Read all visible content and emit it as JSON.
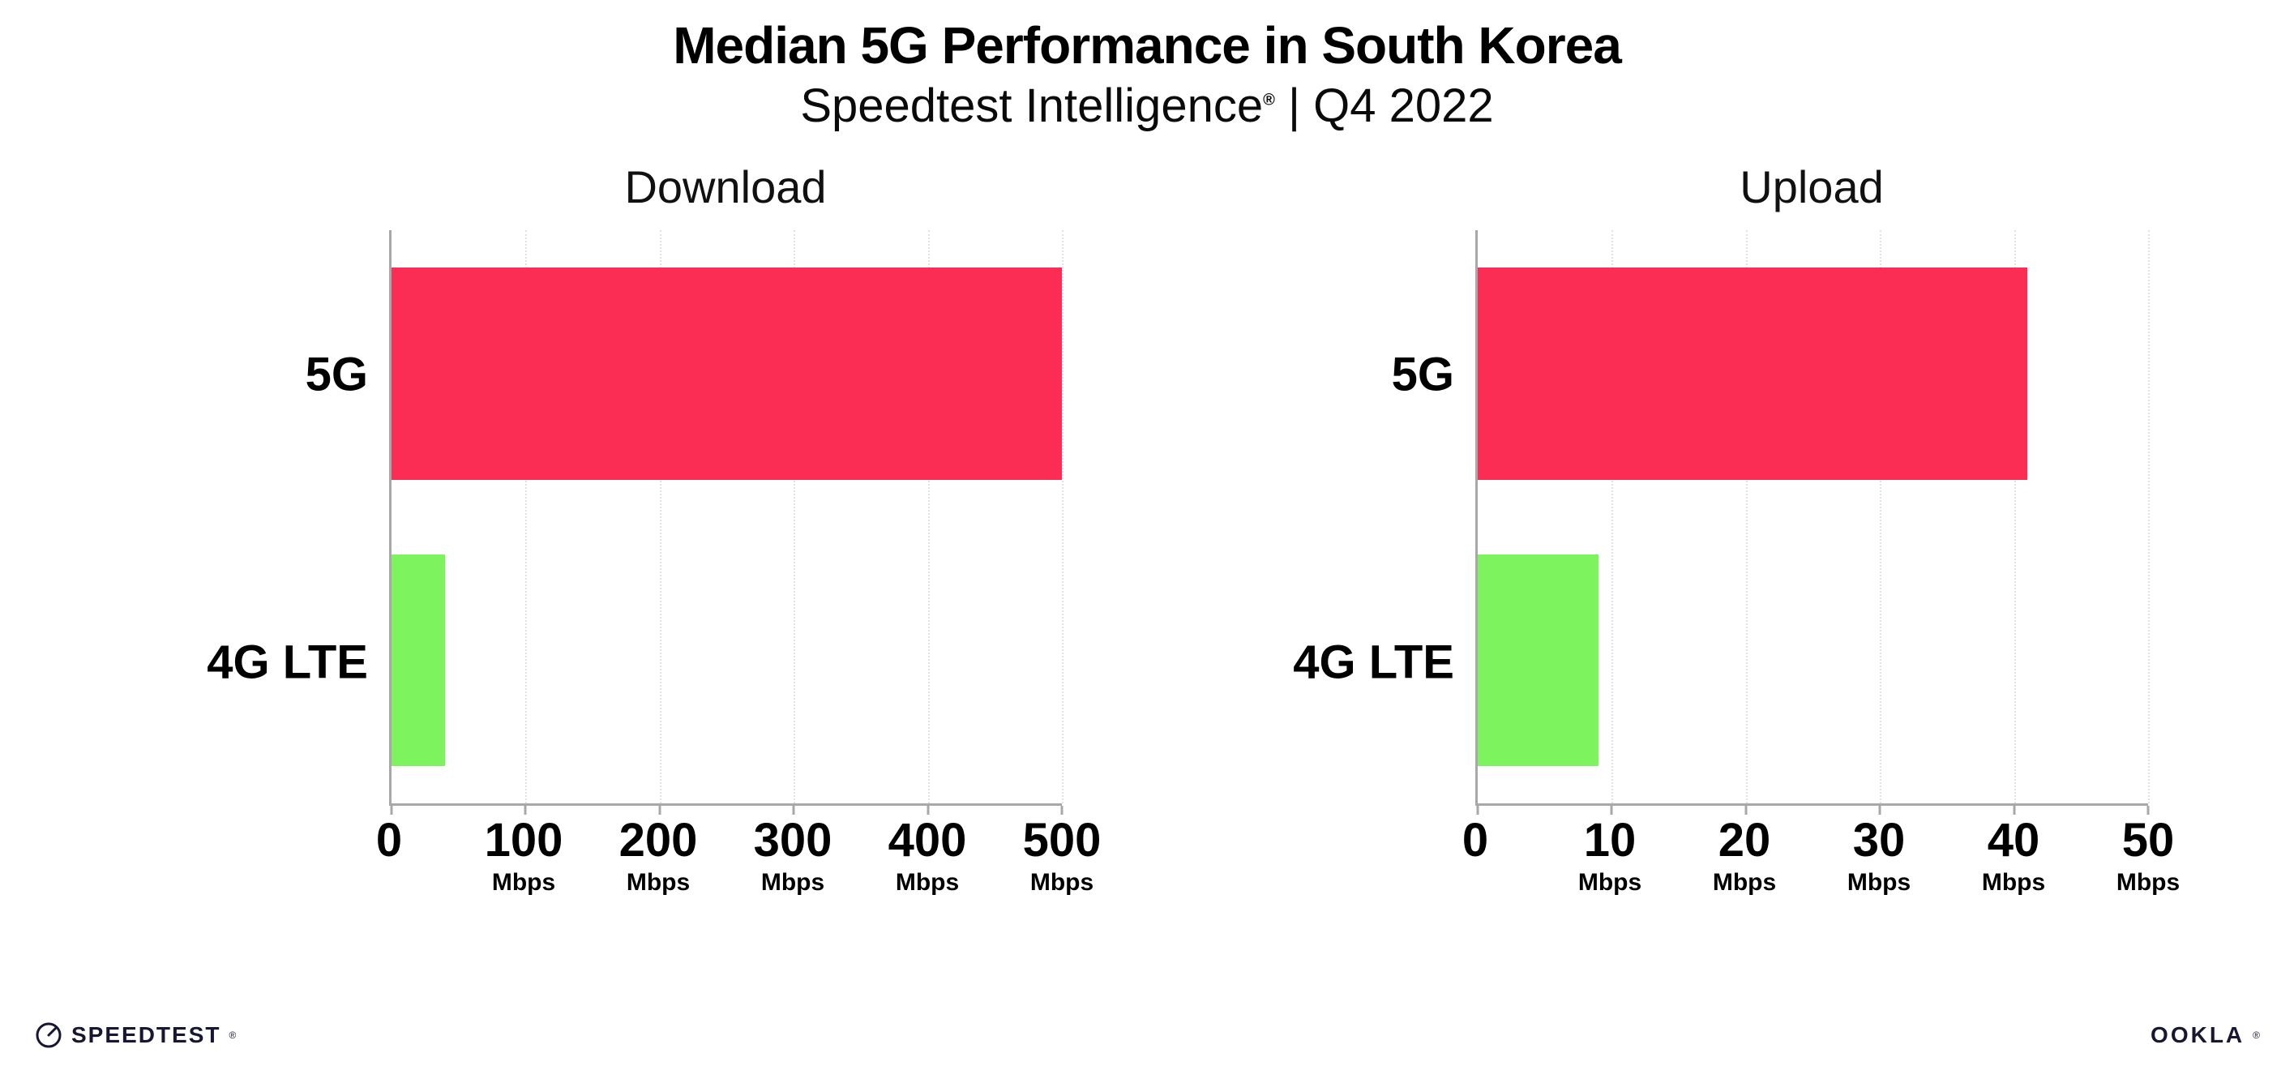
{
  "header": {
    "title": "Median 5G Performance in South Korea",
    "subtitle_pre": "Speedtest Intelligence",
    "subtitle_reg": "®",
    "subtitle_post": " | Q4 2022"
  },
  "chart_data": [
    {
      "type": "bar",
      "orientation": "horizontal",
      "title": "Download",
      "categories": [
        "5G",
        "4G LTE"
      ],
      "values": [
        500,
        40
      ],
      "unit": "Mbps",
      "xlim": [
        0,
        500
      ],
      "xticks": [
        0,
        100,
        200,
        300,
        400,
        500
      ],
      "colors": [
        "#fb2d55",
        "#7df45e"
      ],
      "grid": "dotted-vertical",
      "legend": "none"
    },
    {
      "type": "bar",
      "orientation": "horizontal",
      "title": "Upload",
      "categories": [
        "5G",
        "4G LTE"
      ],
      "values": [
        41,
        9
      ],
      "unit": "Mbps",
      "xlim": [
        0,
        50
      ],
      "xticks": [
        0,
        10,
        20,
        30,
        40,
        50
      ],
      "colors": [
        "#fb2d55",
        "#7df45e"
      ],
      "grid": "dotted-vertical",
      "legend": "none"
    }
  ],
  "footer": {
    "speedtest_label": "SPEEDTEST",
    "speedtest_mark": "®",
    "ookla_label": "OOKLA",
    "ookla_mark": "®"
  }
}
